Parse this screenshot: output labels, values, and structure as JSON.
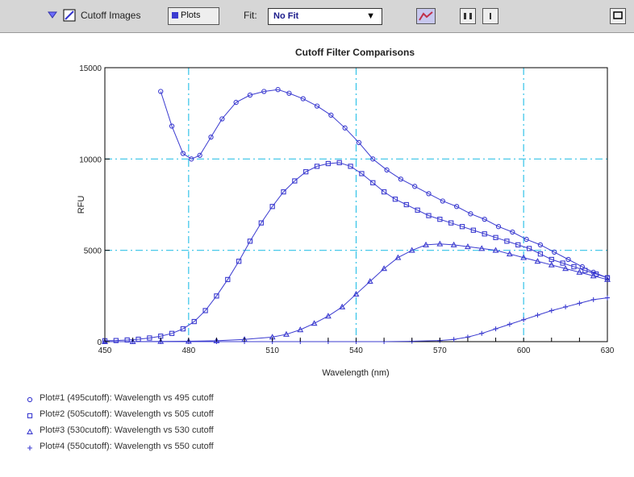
{
  "toolbar": {
    "cutoff_label": "Cutoff Images",
    "plots_button": "Plots",
    "fit_label": "Fit:",
    "fit_value": "No Fit"
  },
  "chart_data": {
    "type": "line",
    "title": "Cutoff Filter Comparisons",
    "xlabel": "Wavelength (nm)",
    "ylabel": "RFU",
    "xlim": [
      450,
      630
    ],
    "ylim": [
      0,
      15000
    ],
    "xticks": [
      450,
      480,
      510,
      540,
      570,
      600,
      630
    ],
    "yticks": [
      0,
      5000,
      10000,
      15000
    ],
    "ytick_labels": [
      "0",
      "5000",
      "10000",
      "15000"
    ],
    "grid": true,
    "legend_position": "below",
    "colors": {
      "line": "#3b3bd0",
      "grid": "#33c3e8",
      "marker": "#3b3bd0"
    },
    "series": [
      {
        "name": "Plot#1 (495cutoff): Wavelength vs 495 cutoff",
        "marker": "circle",
        "x": [
          470,
          474,
          478,
          481,
          484,
          488,
          492,
          497,
          502,
          507,
          512,
          516,
          521,
          526,
          531,
          536,
          541,
          546,
          551,
          556,
          561,
          566,
          571,
          576,
          581,
          586,
          591,
          596,
          601,
          606,
          611,
          616,
          621,
          625,
          630
        ],
        "y": [
          13700,
          11800,
          10300,
          10000,
          10200,
          11200,
          12200,
          13100,
          13500,
          13700,
          13800,
          13600,
          13300,
          12900,
          12400,
          11700,
          10900,
          10000,
          9400,
          8900,
          8500,
          8100,
          7700,
          7400,
          7000,
          6700,
          6300,
          6000,
          5600,
          5300,
          4900,
          4500,
          4100,
          3800,
          3500
        ]
      },
      {
        "name": "Plot#2 (505cutoff): Wavelength vs 505 cutoff",
        "marker": "square",
        "x": [
          450,
          454,
          458,
          462,
          466,
          470,
          474,
          478,
          482,
          486,
          490,
          494,
          498,
          502,
          506,
          510,
          514,
          518,
          522,
          526,
          530,
          534,
          538,
          542,
          546,
          550,
          554,
          558,
          562,
          566,
          570,
          574,
          578,
          582,
          586,
          590,
          594,
          598,
          602,
          606,
          610,
          614,
          618,
          622,
          626,
          630
        ],
        "y": [
          50,
          60,
          90,
          130,
          200,
          300,
          450,
          700,
          1100,
          1700,
          2500,
          3400,
          4400,
          5500,
          6500,
          7400,
          8200,
          8800,
          9300,
          9600,
          9750,
          9800,
          9600,
          9200,
          8700,
          8200,
          7800,
          7500,
          7200,
          6900,
          6700,
          6500,
          6300,
          6100,
          5900,
          5700,
          5500,
          5300,
          5100,
          4800,
          4500,
          4300,
          4100,
          3900,
          3700,
          3500
        ]
      },
      {
        "name": "Plot#3 (530cutoff): Wavelength vs 530 cutoff",
        "marker": "triangle",
        "x": [
          450,
          460,
          470,
          480,
          490,
          500,
          510,
          515,
          520,
          525,
          530,
          535,
          540,
          545,
          550,
          555,
          560,
          565,
          570,
          575,
          580,
          585,
          590,
          595,
          600,
          605,
          610,
          615,
          620,
          625,
          630
        ],
        "y": [
          0,
          0,
          10,
          20,
          50,
          120,
          250,
          400,
          650,
          1000,
          1400,
          1900,
          2600,
          3300,
          4000,
          4600,
          5000,
          5300,
          5350,
          5300,
          5200,
          5100,
          5000,
          4800,
          4600,
          4400,
          4200,
          4000,
          3800,
          3600,
          3400
        ]
      },
      {
        "name": "Plot#4 (550cutoff): Wavelength vs 550 cutoff",
        "marker": "plus",
        "x": [
          450,
          460,
          470,
          480,
          490,
          500,
          510,
          520,
          530,
          540,
          550,
          560,
          570,
          575,
          580,
          585,
          590,
          595,
          600,
          605,
          610,
          615,
          620,
          625,
          630
        ],
        "y": [
          0,
          0,
          0,
          0,
          0,
          0,
          0,
          0,
          0,
          0,
          0,
          20,
          60,
          120,
          250,
          450,
          700,
          950,
          1200,
          1450,
          1700,
          1900,
          2100,
          2300,
          2400
        ]
      }
    ]
  }
}
